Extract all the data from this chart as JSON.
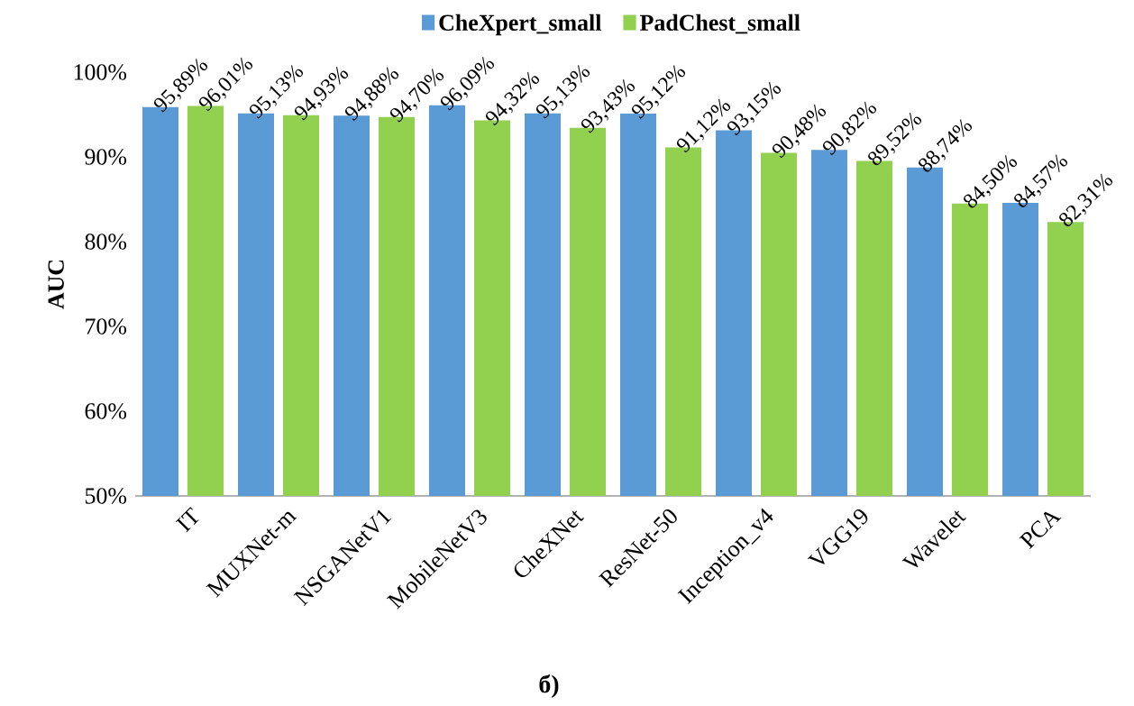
{
  "chart_data": {
    "type": "bar",
    "ylabel": "AUC",
    "legend": "top",
    "categories": [
      "IT",
      "MUXNet-m",
      "NSGANetV1",
      "MobileNetV3",
      "CheXNet",
      "ResNet-50",
      "Inception_v4",
      "VGG19",
      "Wavelet",
      "PCA"
    ],
    "ylim": [
      50,
      100
    ],
    "yticks": [
      {
        "value": 50,
        "label": "50%"
      },
      {
        "value": 60,
        "label": "60%"
      },
      {
        "value": 70,
        "label": "70%"
      },
      {
        "value": 80,
        "label": "80%"
      },
      {
        "value": 90,
        "label": "90%"
      },
      {
        "value": 100,
        "label": "100%"
      }
    ],
    "series": [
      {
        "name": "CheXpert_small",
        "color": "#5b9bd5",
        "values": [
          95.89,
          95.13,
          94.88,
          96.09,
          95.13,
          95.12,
          93.15,
          90.82,
          88.74,
          84.57
        ],
        "value_labels": [
          "95,89%",
          "95,13%",
          "94,88%",
          "96,09%",
          "95,13%",
          "95,12%",
          "93,15%",
          "90,82%",
          "88,74%",
          "84,57%"
        ]
      },
      {
        "name": "PadChest_small",
        "color": "#92d050",
        "values": [
          96.01,
          94.93,
          94.7,
          94.32,
          93.43,
          91.12,
          90.48,
          89.52,
          84.5,
          82.31
        ],
        "value_labels": [
          "96,01%",
          "94,93%",
          "94,70%",
          "94,32%",
          "93,43%",
          "91,12%",
          "90,48%",
          "89,52%",
          "84,50%",
          "82,31%"
        ]
      }
    ],
    "annotations": [
      "б)"
    ]
  }
}
